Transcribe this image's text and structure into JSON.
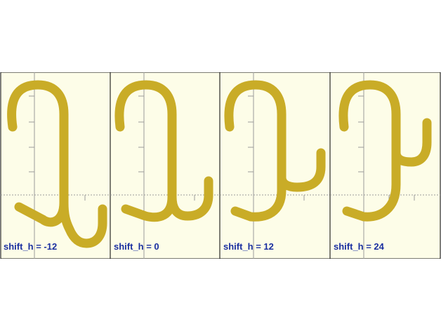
{
  "colors": {
    "background": "#fdfde8",
    "hook_fill": "#c9ac27",
    "border": "#000000",
    "axis": "#9a9a9a",
    "label": "#1a2fa0"
  },
  "panels": [
    {
      "label": "shift_h = -12",
      "shift_h": -12
    },
    {
      "label": "shift_h = 0",
      "shift_h": 0
    },
    {
      "label": "shift_h = 12",
      "shift_h": 12
    },
    {
      "label": "shift_h = 24",
      "shift_h": 24
    }
  ]
}
